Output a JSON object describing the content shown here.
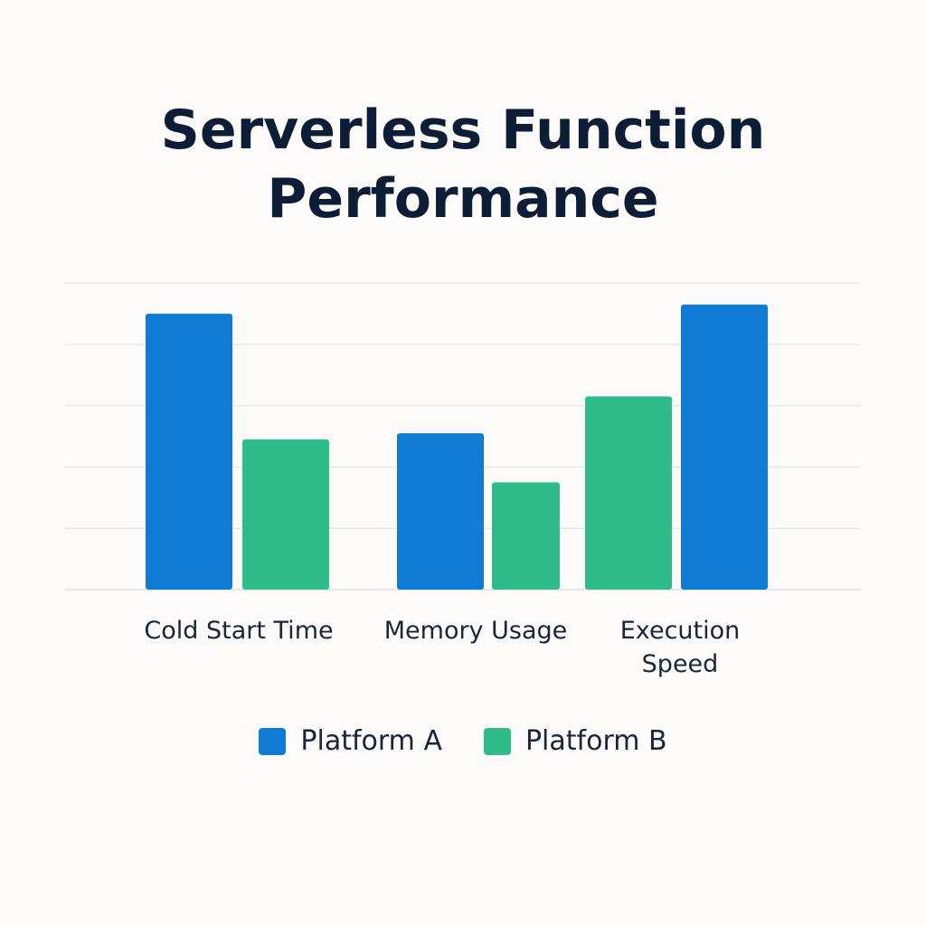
{
  "chart_data": {
    "type": "bar",
    "title": "Serverless Function Performance",
    "categories": [
      "Cold Start Time",
      "Memory Usage",
      "Execution Speed"
    ],
    "series": [
      {
        "name": "Platform A",
        "color": "#107bd5",
        "values": [
          90,
          51,
          93
        ]
      },
      {
        "name": "Platform B",
        "color": "#2fbc88",
        "values": [
          49,
          35,
          63
        ]
      }
    ],
    "ylim": [
      0,
      100
    ],
    "grid": true,
    "legend": "bottom-center",
    "xlabel": "",
    "ylabel": ""
  }
}
